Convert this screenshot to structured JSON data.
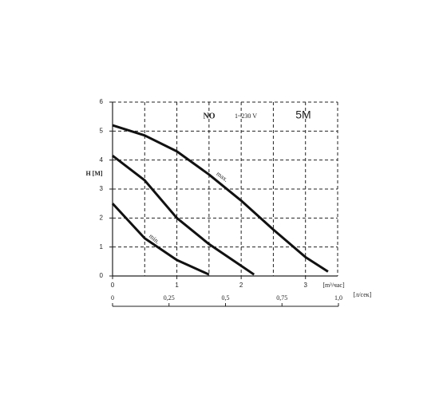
{
  "chart_data": {
    "type": "line",
    "ylabel": "H [M]",
    "xlabel": "[m³/час]",
    "x2label": "[л/сек]",
    "annotations": [
      "NO",
      "1~230 V",
      "5M"
    ],
    "xlim": [
      0,
      3.5
    ],
    "xticks": [
      0,
      1,
      2,
      3
    ],
    "xgrid": [
      0.5,
      1,
      1.5,
      2,
      2.5,
      3,
      3.5
    ],
    "ylim": [
      0,
      6
    ],
    "yticks": [
      0,
      1,
      2,
      3,
      4,
      5,
      6
    ],
    "x2lim": [
      0,
      1
    ],
    "x2ticks": [
      0,
      {
        "value": 0.25,
        "label": "0,25"
      },
      {
        "value": 0.5,
        "label": "0,5"
      },
      {
        "value": 0.75,
        "label": "0,75"
      },
      {
        "value": 1,
        "label": "1,0"
      }
    ],
    "grid": true,
    "series": [
      {
        "name": "max.",
        "color": "#111111",
        "x": [
          0,
          0.5,
          1,
          1.5,
          2,
          2.5,
          3,
          3.35
        ],
        "values": [
          5.2,
          4.85,
          4.3,
          3.5,
          2.6,
          1.6,
          0.65,
          0.15
        ]
      },
      {
        "color": "#111111",
        "x": [
          0,
          0.5,
          1,
          1.5,
          2,
          2.2
        ],
        "values": [
          4.15,
          3.3,
          2.0,
          1.1,
          0.35,
          0.05
        ]
      },
      {
        "name": "min.",
        "color": "#111111",
        "x": [
          0,
          0.5,
          1,
          1.5
        ],
        "values": [
          2.5,
          1.3,
          0.55,
          0.05
        ]
      }
    ]
  }
}
